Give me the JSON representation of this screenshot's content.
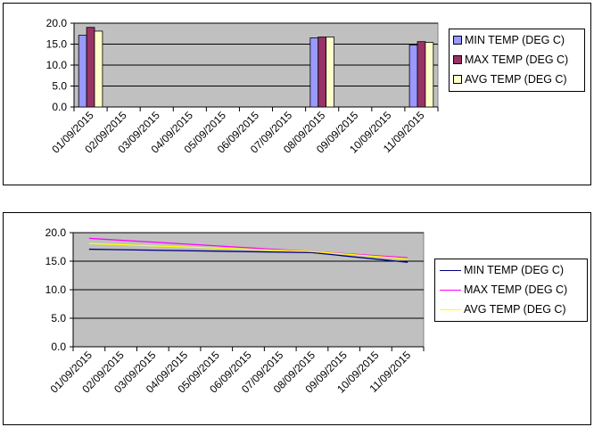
{
  "chart_data": [
    {
      "type": "bar",
      "categories": [
        "01/09/2015",
        "02/09/2015",
        "03/09/2015",
        "04/09/2015",
        "05/09/2015",
        "06/09/2015",
        "07/09/2015",
        "08/09/2015",
        "09/09/2015",
        "10/09/2015",
        "11/09/2015"
      ],
      "series": [
        {
          "name": "MIN TEMP (DEG C)",
          "color": "#9999ff",
          "values": [
            17.1,
            null,
            null,
            null,
            null,
            null,
            null,
            16.5,
            null,
            null,
            14.8
          ]
        },
        {
          "name": "MAX TEMP (DEG C)",
          "color": "#993366",
          "values": [
            19.0,
            null,
            null,
            null,
            null,
            null,
            null,
            16.7,
            null,
            null,
            15.6
          ]
        },
        {
          "name": "AVG TEMP (DEG C)",
          "color": "#ffffcc",
          "values": [
            18.1,
            null,
            null,
            null,
            null,
            null,
            null,
            16.7,
            null,
            null,
            15.4
          ]
        }
      ],
      "yticks": [
        "0.0",
        "5.0",
        "10.0",
        "15.0",
        "20.0"
      ],
      "ylim": [
        0,
        20
      ],
      "grid": true,
      "legend": "right",
      "plot_bg": "#c0c0c0"
    },
    {
      "type": "line",
      "categories": [
        "01/09/2015",
        "02/09/2015",
        "03/09/2015",
        "04/09/2015",
        "05/09/2015",
        "06/09/2015",
        "07/09/2015",
        "08/09/2015",
        "09/09/2015",
        "10/09/2015",
        "11/09/2015"
      ],
      "series": [
        {
          "name": "MIN TEMP (DEG C)",
          "color": "#000080",
          "values": [
            17.1,
            null,
            null,
            null,
            null,
            null,
            null,
            16.5,
            null,
            null,
            14.8
          ]
        },
        {
          "name": "MAX TEMP (DEG C)",
          "color": "#ff00ff",
          "values": [
            19.0,
            null,
            null,
            null,
            null,
            null,
            null,
            16.7,
            null,
            null,
            15.6
          ]
        },
        {
          "name": "AVG TEMP (DEG C)",
          "color": "#ffff00",
          "values": [
            18.1,
            null,
            null,
            null,
            null,
            null,
            null,
            16.7,
            null,
            null,
            15.4
          ]
        }
      ],
      "yticks": [
        "0.0",
        "5.0",
        "10.0",
        "15.0",
        "20.0"
      ],
      "ylim": [
        0,
        20
      ],
      "grid": true,
      "legend": "right",
      "plot_bg": "#c0c0c0"
    }
  ]
}
